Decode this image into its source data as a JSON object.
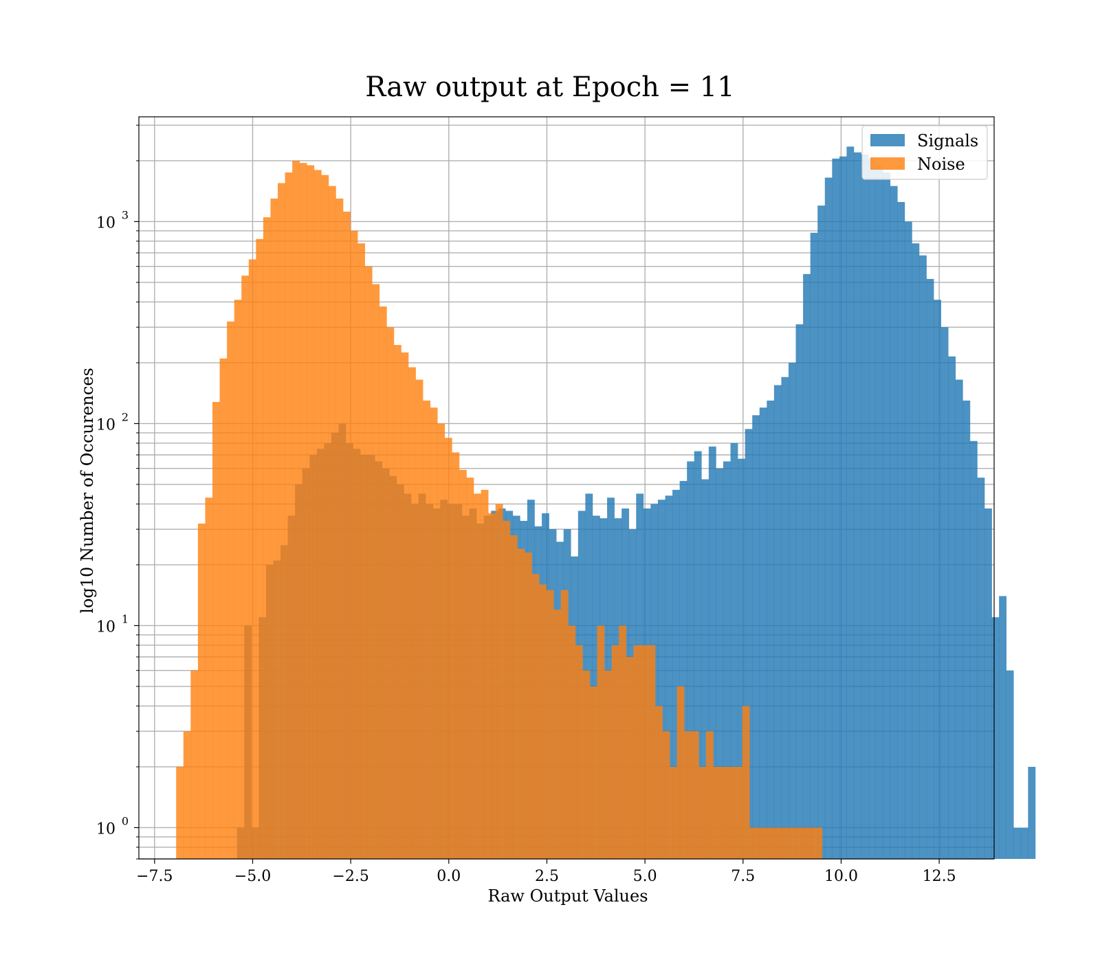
{
  "chart_data": {
    "type": "histogram",
    "title": "Raw output at Epoch = 11",
    "xlabel": "Raw Output Values",
    "ylabel": "log10 Number of Occurences",
    "xlim": [
      -7.9,
      13.9
    ],
    "ylim": [
      0.7,
      3300
    ],
    "yscale": "log",
    "grid": "on (major and minor)",
    "legend_position": "top-right",
    "x_ticks": [
      {
        "value": -7.5,
        "label": "−7.5"
      },
      {
        "value": -5.0,
        "label": "−5.0"
      },
      {
        "value": -2.5,
        "label": "−2.5"
      },
      {
        "value": 0.0,
        "label": "0.0"
      },
      {
        "value": 2.5,
        "label": "2.5"
      },
      {
        "value": 5.0,
        "label": "5.0"
      },
      {
        "value": 7.5,
        "label": "7.5"
      },
      {
        "value": 10.0,
        "label": "10.0"
      },
      {
        "value": 12.5,
        "label": "12.5"
      }
    ],
    "y_ticks": [
      {
        "value": 1,
        "base": "10",
        "exp": "0"
      },
      {
        "value": 10,
        "base": "10",
        "exp": "1"
      },
      {
        "value": 100,
        "base": "10",
        "exp": "2"
      },
      {
        "value": 1000,
        "base": "10",
        "exp": "3"
      }
    ],
    "series": [
      {
        "name": "Signals",
        "color": "#1f77b4",
        "opacity": 0.8,
        "bin_start": -5.4,
        "bin_width": 0.185,
        "counts": [
          1,
          10,
          1,
          11,
          20,
          21,
          25,
          35,
          50,
          60,
          70,
          75,
          80,
          90,
          100,
          80,
          75,
          70,
          70,
          65,
          60,
          55,
          50,
          45,
          40,
          45,
          40,
          38,
          42,
          40,
          40,
          35,
          38,
          32,
          35,
          37,
          38,
          37,
          35,
          33,
          42,
          31,
          36,
          30,
          26,
          30,
          22,
          37,
          45,
          35,
          34,
          43,
          34,
          38,
          30,
          45,
          38,
          40,
          42,
          44,
          47,
          52,
          65,
          73,
          53,
          77,
          60,
          65,
          80,
          67,
          94,
          110,
          120,
          130,
          155,
          170,
          200,
          310,
          550,
          880,
          1200,
          1650,
          2050,
          2100,
          2350,
          2200,
          2150,
          2050,
          1900,
          1750,
          1500,
          1250,
          1000,
          780,
          680,
          520,
          410,
          300,
          215,
          165,
          130,
          82,
          54,
          38,
          11,
          14,
          6,
          1,
          1,
          2
        ]
      },
      {
        "name": "Noise",
        "color": "#ff7f0e",
        "opacity": 0.8,
        "bin_start": -6.95,
        "bin_width": 0.185,
        "counts": [
          2,
          3,
          6,
          32,
          43,
          128,
          210,
          320,
          410,
          540,
          650,
          820,
          1050,
          1300,
          1550,
          1750,
          2000,
          1950,
          1900,
          1800,
          1700,
          1500,
          1300,
          1120,
          900,
          780,
          600,
          490,
          380,
          300,
          245,
          225,
          190,
          165,
          130,
          120,
          100,
          85,
          72,
          59,
          54,
          45,
          47,
          36,
          40,
          33,
          28,
          24,
          23,
          18,
          16,
          15,
          12,
          15,
          10,
          8,
          6,
          5,
          10,
          6,
          8,
          10,
          7,
          8,
          8,
          8,
          4,
          3,
          2,
          5,
          3,
          3,
          2,
          3,
          2,
          2,
          2,
          2,
          4,
          1,
          1,
          1,
          1,
          1,
          1,
          1,
          1,
          1,
          1
        ]
      }
    ]
  }
}
